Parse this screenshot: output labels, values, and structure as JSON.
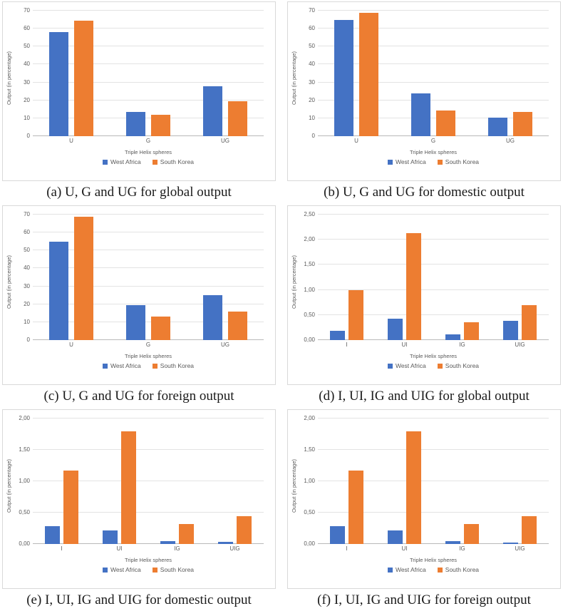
{
  "shared": {
    "xlabel": "Triple Helix spheres",
    "ylabel": "Output (in percentage)",
    "legend": [
      {
        "label": "West Africa",
        "color": "#4472C4"
      },
      {
        "label": "South Korea",
        "color": "#ED7D31"
      }
    ],
    "gridline_color": "#e3e3e3",
    "axis_line_color": "#b9b9b9",
    "panel_border_color": "#d9d9d9"
  },
  "chart_data": [
    {
      "id": "a",
      "type": "bar",
      "caption": "(a) U, G and UG for global output",
      "xlabel": "Triple Helix spheres",
      "ylabel": "Output (in percentage)",
      "categories": [
        "U",
        "G",
        "UG"
      ],
      "series": [
        {
          "name": "West Africa",
          "color": "#4472C4",
          "values": [
            58,
            13.5,
            28
          ]
        },
        {
          "name": "South Korea",
          "color": "#ED7D31",
          "values": [
            64.5,
            12,
            19.5
          ]
        }
      ],
      "ylim": [
        0,
        70
      ],
      "ytick_step": 10,
      "ytick_labels": [
        "0",
        "10",
        "20",
        "30",
        "40",
        "50",
        "60",
        "70"
      ],
      "grid": true,
      "legend_position": "bottom"
    },
    {
      "id": "b",
      "type": "bar",
      "caption": "(b) U, G and UG for domestic output",
      "xlabel": "Triple Helix spheres",
      "ylabel": "Output (in percentage)",
      "categories": [
        "U",
        "G",
        "UG"
      ],
      "series": [
        {
          "name": "West Africa",
          "color": "#4472C4",
          "values": [
            65,
            24,
            10.5
          ]
        },
        {
          "name": "South Korea",
          "color": "#ED7D31",
          "values": [
            69,
            14.5,
            13.5
          ]
        }
      ],
      "ylim": [
        0,
        70
      ],
      "ytick_step": 10,
      "ytick_labels": [
        "0",
        "10",
        "20",
        "30",
        "40",
        "50",
        "60",
        "70"
      ],
      "grid": true,
      "legend_position": "bottom"
    },
    {
      "id": "c",
      "type": "bar",
      "caption": "(c) U, G and UG for foreign output",
      "xlabel": "Triple Helix spheres",
      "ylabel": "Output (in percentage)",
      "categories": [
        "U",
        "G",
        "UG"
      ],
      "series": [
        {
          "name": "West Africa",
          "color": "#4472C4",
          "values": [
            55,
            19.5,
            25
          ]
        },
        {
          "name": "South Korea",
          "color": "#ED7D31",
          "values": [
            69,
            13,
            16
          ]
        }
      ],
      "ylim": [
        0,
        70
      ],
      "ytick_step": 10,
      "ytick_labels": [
        "0",
        "10",
        "20",
        "30",
        "40",
        "50",
        "60",
        "70"
      ],
      "grid": true,
      "legend_position": "bottom"
    },
    {
      "id": "d",
      "type": "bar",
      "caption": "(d) I, UI, IG and UIG for global output",
      "xlabel": "Triple Helix spheres",
      "ylabel": "Output (in percentage)",
      "categories": [
        "I",
        "UI",
        "IG",
        "UIG"
      ],
      "series": [
        {
          "name": "West Africa",
          "color": "#4472C4",
          "values": [
            0.18,
            0.42,
            0.11,
            0.38
          ]
        },
        {
          "name": "South Korea",
          "color": "#ED7D31",
          "values": [
            0.99,
            2.13,
            0.36,
            0.7
          ]
        }
      ],
      "ylim": [
        0,
        2.5
      ],
      "ytick_step": 0.5,
      "ytick_labels": [
        "0,00",
        "0,50",
        "1,00",
        "1,50",
        "2,00",
        "2,50"
      ],
      "grid": true,
      "legend_position": "bottom"
    },
    {
      "id": "e",
      "type": "bar",
      "caption": "(e) I, UI, IG and UIG for domestic output",
      "xlabel": "Triple Helix spheres",
      "ylabel": "Output (in percentage)",
      "categories": [
        "I",
        "UI",
        "IG",
        "UIG"
      ],
      "series": [
        {
          "name": "West Africa",
          "color": "#4472C4",
          "values": [
            0.28,
            0.22,
            0.05,
            0.03
          ]
        },
        {
          "name": "South Korea",
          "color": "#ED7D31",
          "values": [
            1.17,
            1.79,
            0.32,
            0.44
          ]
        }
      ],
      "ylim": [
        0,
        2
      ],
      "ytick_step": 0.5,
      "ytick_labels": [
        "0,00",
        "0,50",
        "1,00",
        "1,50",
        "2,00"
      ],
      "grid": true,
      "legend_position": "bottom"
    },
    {
      "id": "f",
      "type": "bar",
      "caption": "(f) I, UI, IG and UIG for foreign output",
      "xlabel": "Triple Helix spheres",
      "ylabel": "Output (in percentage)",
      "categories": [
        "I",
        "UI",
        "IG",
        "UIG"
      ],
      "series": [
        {
          "name": "West Africa",
          "color": "#4472C4",
          "values": [
            0.28,
            0.22,
            0.05,
            0.02
          ]
        },
        {
          "name": "South Korea",
          "color": "#ED7D31",
          "values": [
            1.17,
            1.79,
            0.32,
            0.44
          ]
        }
      ],
      "ylim": [
        0,
        2
      ],
      "ytick_step": 0.5,
      "ytick_labels": [
        "0,00",
        "0,50",
        "1,00",
        "1,50",
        "2,00"
      ],
      "grid": true,
      "legend_position": "bottom"
    }
  ]
}
